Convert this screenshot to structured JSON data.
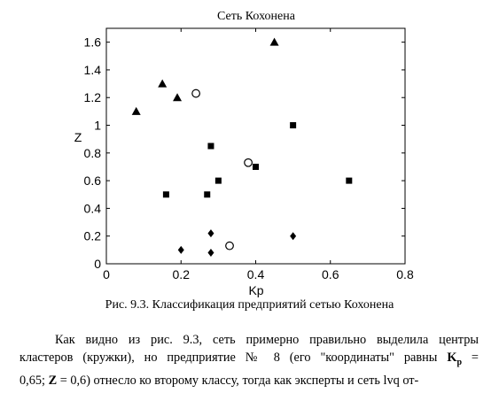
{
  "chart_data": {
    "type": "scatter",
    "title": "Сеть Кохонена",
    "xlabel": "Kp",
    "ylabel": "Z",
    "xlim": [
      0,
      0.8
    ],
    "ylim": [
      0,
      1.7
    ],
    "x_ticks": [
      0,
      0.2,
      0.4,
      0.6,
      0.8
    ],
    "x_tick_labels": [
      "0",
      "0.2",
      "0.4",
      "0.6",
      "0.8"
    ],
    "y_ticks": [
      0,
      0.2,
      0.4,
      0.6,
      0.8,
      1.0,
      1.2,
      1.4,
      1.6
    ],
    "y_tick_labels": [
      "0",
      "0.2",
      "0.4",
      "0.6",
      "0.8",
      "1",
      "1.2",
      "1.4",
      "1.6"
    ],
    "grid": false,
    "series": [
      {
        "name": "triangles",
        "marker": "triangle",
        "points": [
          [
            0.08,
            1.1
          ],
          [
            0.15,
            1.3
          ],
          [
            0.19,
            1.2
          ],
          [
            0.45,
            1.6
          ]
        ]
      },
      {
        "name": "squares",
        "marker": "square",
        "points": [
          [
            0.16,
            0.5
          ],
          [
            0.27,
            0.5
          ],
          [
            0.28,
            0.85
          ],
          [
            0.3,
            0.6
          ],
          [
            0.4,
            0.7
          ],
          [
            0.5,
            1.0
          ],
          [
            0.65,
            0.6
          ]
        ]
      },
      {
        "name": "diamonds",
        "marker": "diamond",
        "points": [
          [
            0.2,
            0.1
          ],
          [
            0.28,
            0.08
          ],
          [
            0.28,
            0.22
          ],
          [
            0.5,
            0.2
          ]
        ]
      },
      {
        "name": "centers",
        "marker": "circle",
        "points": [
          [
            0.24,
            1.23
          ],
          [
            0.38,
            0.73
          ],
          [
            0.33,
            0.13
          ]
        ]
      }
    ]
  },
  "caption": "Рис. 9.3. Классификация предприятий сетью Кохонена",
  "paragraph": {
    "line1": "Как видно из рис. 9.3, сеть примерно правильно выделила центры",
    "line2_a": "кластеров (кружки), но предприятие № 8 (его \"координаты\" равны ",
    "line2_b": "K",
    "line2_c": "p",
    "line2_d": " =",
    "line3_a": "0,65; ",
    "line3_b": "Z",
    "line3_c": " = 0,6) отнесло ко второму классу, тогда как эксперты и сеть lvq от-"
  }
}
